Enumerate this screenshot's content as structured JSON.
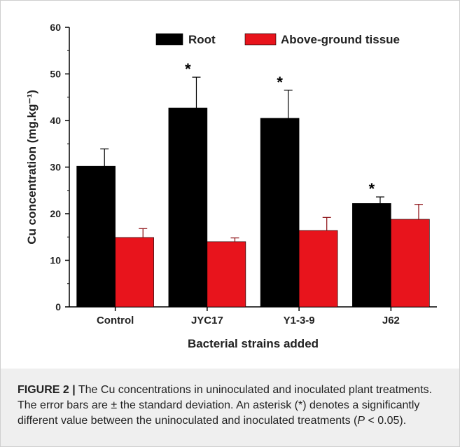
{
  "chart_data": {
    "type": "bar",
    "categories": [
      "Control",
      "JYC17",
      "Y1-3-9",
      "J62"
    ],
    "series": [
      {
        "name": "Root",
        "values": [
          30.2,
          42.7,
          40.5,
          22.2
        ],
        "errors": [
          3.7,
          6.6,
          6.0,
          1.4
        ],
        "significant": [
          false,
          true,
          true,
          true
        ]
      },
      {
        "name": "Above-ground tissue",
        "values": [
          14.9,
          14.0,
          16.4,
          18.8
        ],
        "errors": [
          1.9,
          0.8,
          2.8,
          3.2
        ],
        "significant": [
          false,
          false,
          false,
          false
        ]
      }
    ],
    "series_colors": [
      "#000000",
      "#e8141c"
    ],
    "xlabel": "Bacterial strains added",
    "ylabel": "Cu concentration (mg.kg⁻¹)",
    "ylim": [
      0,
      60
    ],
    "yticks": [
      0,
      10,
      20,
      30,
      40,
      50,
      60
    ],
    "significance_marker": "*",
    "legend_position": "top",
    "grid": false
  },
  "caption": {
    "lead": "FIGURE 2 |",
    "text": " The Cu concentrations in uninoculated and inoculated plant treatments. The error bars are ± the standard deviation. An asterisk (*) denotes a significantly different value between the uninoculated and inoculated treatments (",
    "p_symbol": "P",
    "p_rest": " < 0.05)."
  }
}
